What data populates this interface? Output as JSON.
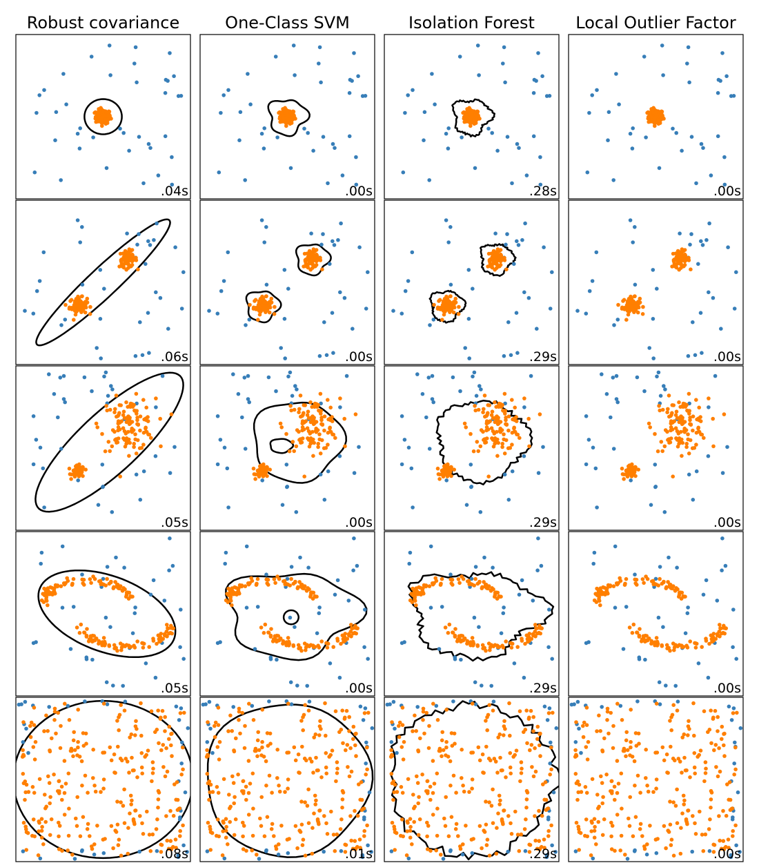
{
  "chart_data": {
    "type": "scatter",
    "description_rows": 5,
    "columns": [
      "Robust covariance",
      "One-Class SVM",
      "Isolation Forest",
      "Local Outlier Factor"
    ],
    "times": [
      [
        ".04s",
        ".00s",
        ".28s",
        ".00s"
      ],
      [
        ".06s",
        ".00s",
        ".29s",
        ".00s"
      ],
      [
        ".05s",
        ".00s",
        ".29s",
        ".00s"
      ],
      [
        ".05s",
        ".00s",
        ".29s",
        ".00s"
      ],
      [
        ".08s",
        ".01s",
        ".29s",
        ".00s"
      ]
    ],
    "xlim": [
      -7,
      7
    ],
    "ylim": [
      -7,
      7
    ],
    "colors": {
      "inlier": "#ff7f00",
      "outlier": "#377eb8",
      "boundary": "#000000"
    },
    "datasets": [
      "single blob",
      "two equal blobs",
      "two blobs, tight and wide",
      "two moons",
      "uniform noise"
    ]
  }
}
